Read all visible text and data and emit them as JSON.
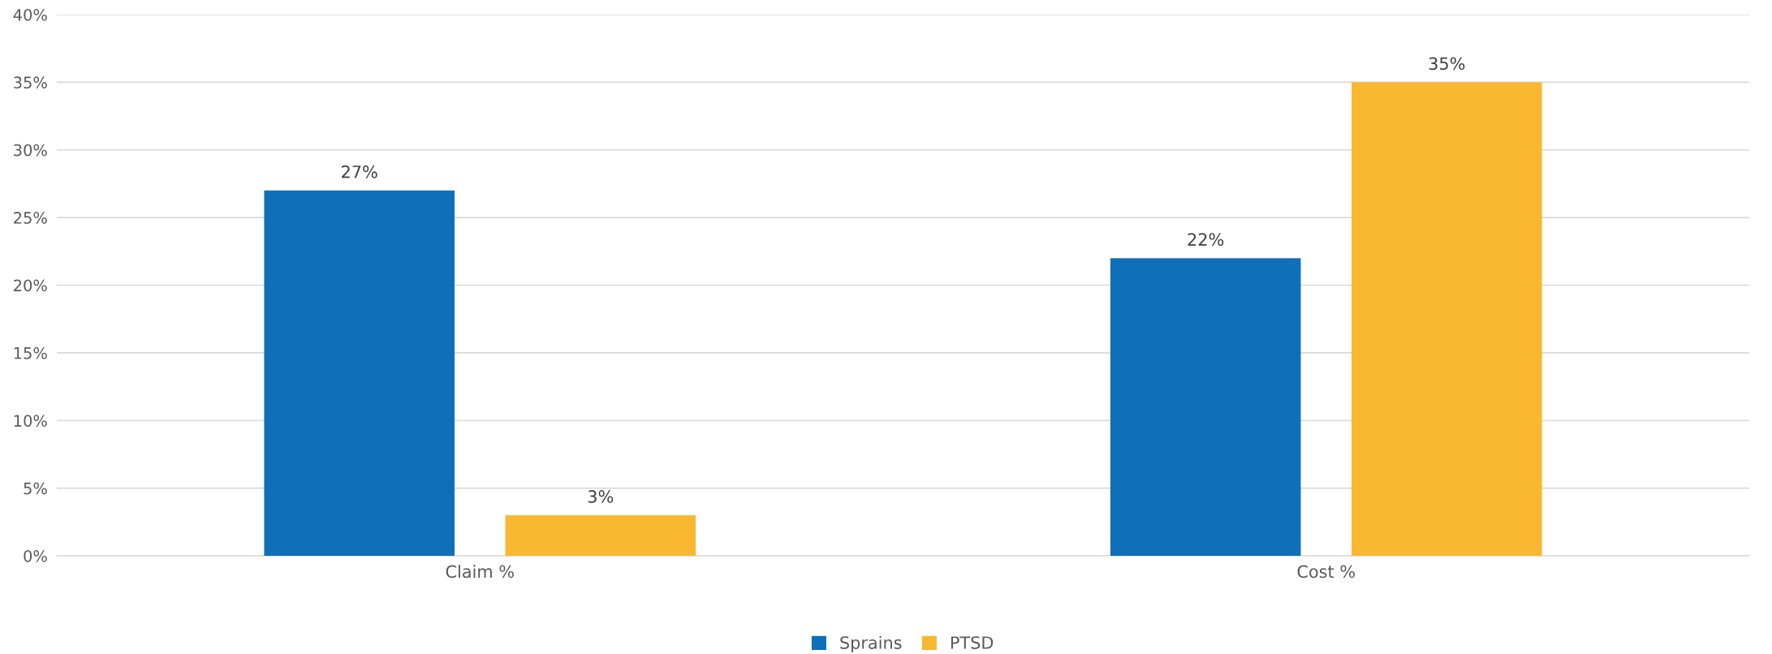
{
  "chart_data": {
    "type": "bar",
    "categories": [
      "Claim %",
      "Cost %"
    ],
    "series": [
      {
        "name": "Sprains",
        "color": "#0f6fb9",
        "values": [
          27,
          22
        ]
      },
      {
        "name": "PTSD",
        "color": "#fab731",
        "values": [
          3,
          35
        ]
      }
    ],
    "value_labels": [
      [
        "27%",
        "22%"
      ],
      [
        "3%",
        "35%"
      ]
    ],
    "ylim": [
      0,
      40
    ],
    "yticks": [
      {
        "value": 0,
        "label": "0%"
      },
      {
        "value": 5,
        "label": "5%"
      },
      {
        "value": 10,
        "label": "10%"
      },
      {
        "value": 15,
        "label": "15%"
      },
      {
        "value": 20,
        "label": "20%"
      },
      {
        "value": 25,
        "label": "25%"
      },
      {
        "value": 30,
        "label": "30%"
      },
      {
        "value": 35,
        "label": "35%"
      },
      {
        "value": 40,
        "label": "40%"
      }
    ],
    "grid": "y",
    "legend": "bottom"
  }
}
